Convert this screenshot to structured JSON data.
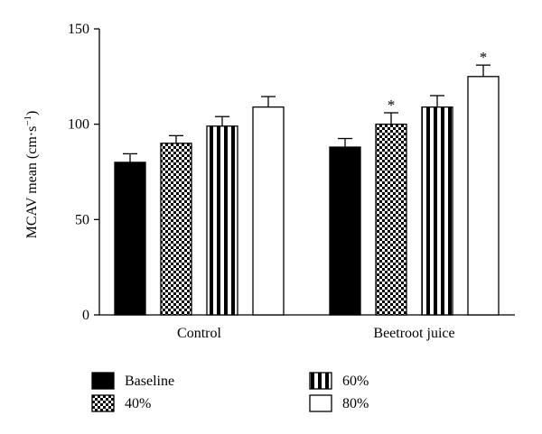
{
  "chart_data": {
    "type": "bar",
    "categories": [
      "Control",
      "Beetroot juice"
    ],
    "series": [
      {
        "name": "Baseline",
        "values": [
          80,
          88
        ],
        "errors": [
          4.5,
          4.5
        ],
        "significant": [
          false,
          false
        ],
        "pattern": "solid-black"
      },
      {
        "name": "40%",
        "values": [
          90,
          100
        ],
        "errors": [
          4,
          6
        ],
        "significant": [
          false,
          true
        ],
        "pattern": "checkerboard"
      },
      {
        "name": "60%",
        "values": [
          99,
          109
        ],
        "errors": [
          5,
          6
        ],
        "significant": [
          false,
          false
        ],
        "pattern": "vertical-stripes"
      },
      {
        "name": "80%",
        "values": [
          109,
          125
        ],
        "errors": [
          5.5,
          6
        ],
        "significant": [
          false,
          true
        ],
        "pattern": "solid-white"
      }
    ],
    "significance_marker": "*",
    "ylabel_main": "MCAV mean (cm·s",
    "ylabel_sup": "−1",
    "ylabel_close": ")",
    "xlabel": "",
    "title": "",
    "ylim": [
      0,
      150
    ],
    "yticks": [
      0,
      50,
      100,
      150
    ],
    "grid": false,
    "legend_placement": "bottom, two columns"
  }
}
